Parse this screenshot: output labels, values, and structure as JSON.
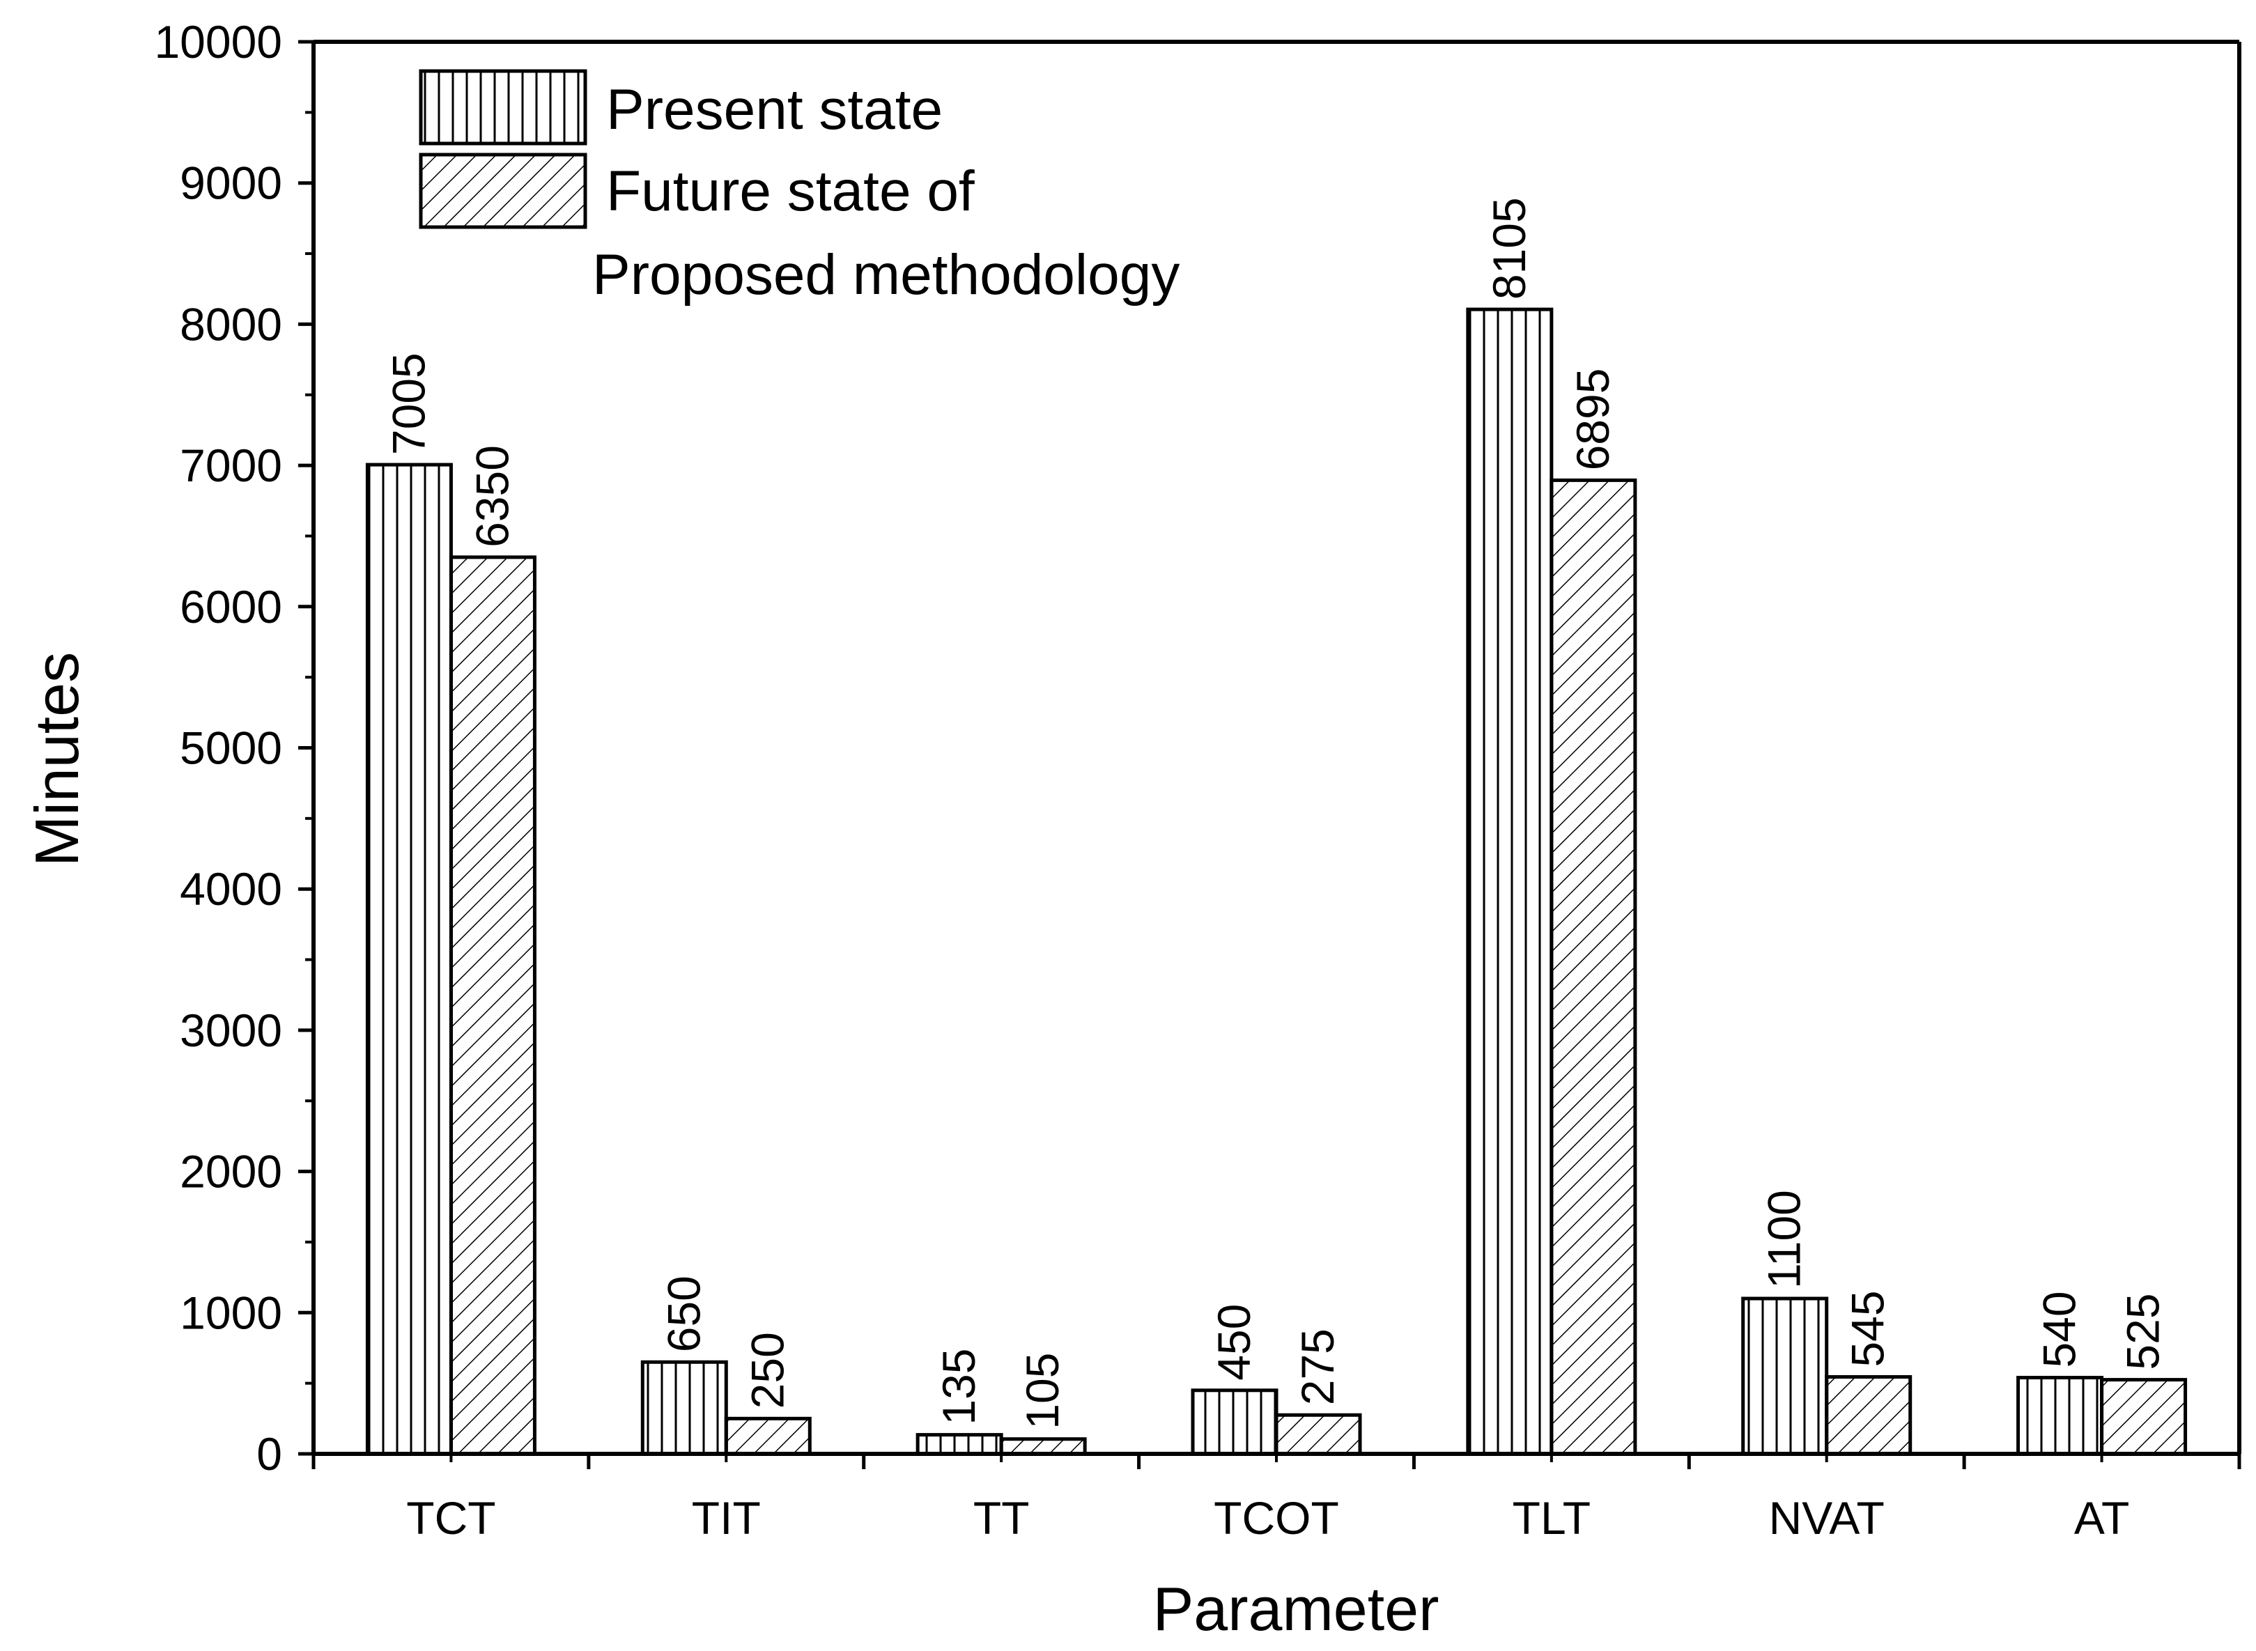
{
  "chart_data": {
    "type": "bar",
    "title": "",
    "xlabel": "Parameter",
    "ylabel": "Minutes",
    "ylim": [
      0,
      10000
    ],
    "yticks": [
      0,
      1000,
      2000,
      3000,
      4000,
      5000,
      6000,
      7000,
      8000,
      9000,
      10000
    ],
    "grid": false,
    "legend_position": "top-left",
    "categories": [
      "TCT",
      "TIT",
      "TT",
      "TCOT",
      "TLT",
      "NVAT",
      "AT"
    ],
    "series": [
      {
        "name": "Present state",
        "pattern": "vertical-lines",
        "values": [
          7005,
          650,
          135,
          450,
          8105,
          1100,
          540
        ]
      },
      {
        "name": "Future state of",
        "name_line2": "Proposed methodology",
        "pattern": "diagonal-hatch",
        "values": [
          6350,
          250,
          105,
          275,
          6895,
          545,
          525
        ]
      }
    ],
    "colors": {
      "stroke": "#000000",
      "fill": "#ffffff"
    }
  }
}
